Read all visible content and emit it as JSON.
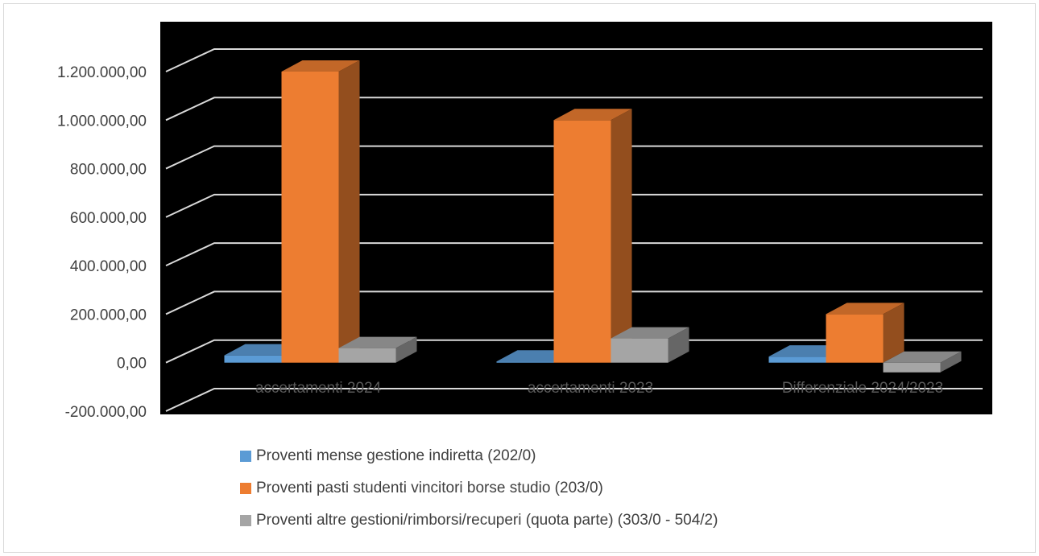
{
  "chart_data": {
    "type": "bar",
    "variant": "3d-clustered-column",
    "title": "",
    "categories": [
      "accertamenti 2024",
      "accertamenti 2023",
      "Differenziale 2024/2023"
    ],
    "series": [
      {
        "name": "Proventi mense gestione indiretta (202/0)",
        "color": "#5b9bd5",
        "values": [
          30000,
          5000,
          25000
        ]
      },
      {
        "name": "Proventi pasti studenti vincitori borse studio (203/0)",
        "color": "#ed7d31",
        "values": [
          1200000,
          1000000,
          200000
        ]
      },
      {
        "name": "Proventi altre gestioni/rimborsi/recuperi (quota parte) (303/0 - 504/2)",
        "color": "#a5a5a5",
        "values": [
          60000,
          100000,
          -40000
        ]
      }
    ],
    "ylim": [
      -200000,
      1200000
    ],
    "yticks": [
      -200000,
      0,
      200000,
      400000,
      600000,
      800000,
      1000000,
      1200000
    ],
    "ytick_labels": [
      "-200.000,00",
      "0,00",
      "200.000,00",
      "400.000,00",
      "600.000,00",
      "800.000,00",
      "1.000.000,00",
      "1.200.000,00"
    ],
    "plot_background": "#000000",
    "gridlines": true,
    "legend_position": "bottom"
  }
}
